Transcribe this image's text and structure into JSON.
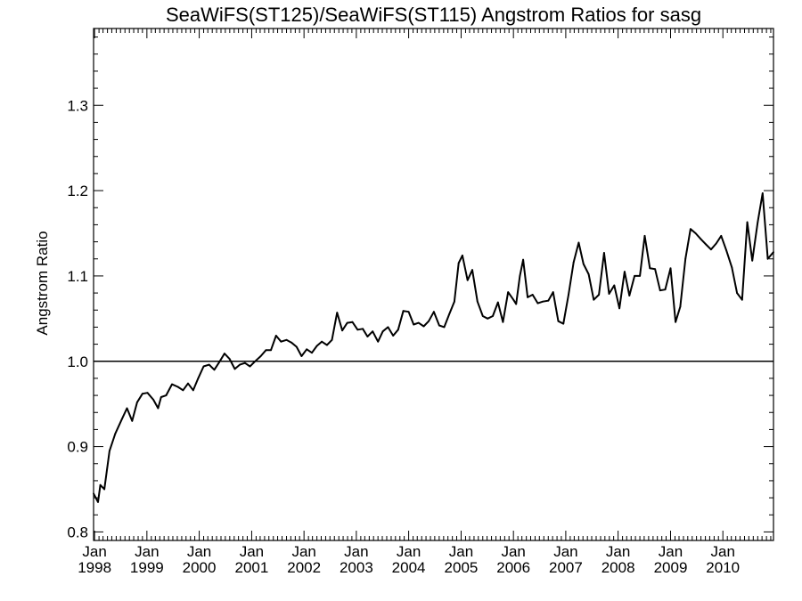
{
  "chart_data": {
    "type": "line",
    "title": "SeaWiFS(ST125)/SeaWiFS(ST115)  Angstrom Ratios for sasg",
    "xlabel": "",
    "ylabel": "Angstrom Ratio",
    "xlim": [
      "1997-12-25",
      "2010-12-20"
    ],
    "ylim": [
      0.79,
      1.39
    ],
    "grid": false,
    "reference_line": {
      "y": 1.0
    },
    "y_ticks": [
      "0.8",
      "0.9",
      "1.0",
      "1.1",
      "1.2",
      "1.3"
    ],
    "x_ticks": [
      {
        "month": "Jan",
        "year": "1998",
        "date": "1998-01-01"
      },
      {
        "month": "Jan",
        "year": "1999",
        "date": "1999-01-01"
      },
      {
        "month": "Jan",
        "year": "2000",
        "date": "2000-01-01"
      },
      {
        "month": "Jan",
        "year": "2001",
        "date": "2001-01-01"
      },
      {
        "month": "Jan",
        "year": "2002",
        "date": "2002-01-01"
      },
      {
        "month": "Jan",
        "year": "2003",
        "date": "2003-01-01"
      },
      {
        "month": "Jan",
        "year": "2004",
        "date": "2004-01-01"
      },
      {
        "month": "Jan",
        "year": "2005",
        "date": "2005-01-01"
      },
      {
        "month": "Jan",
        "year": "2006",
        "date": "2006-01-01"
      },
      {
        "month": "Jan",
        "year": "2007",
        "date": "2007-01-01"
      },
      {
        "month": "Jan",
        "year": "2008",
        "date": "2008-01-01"
      },
      {
        "month": "Jan",
        "year": "2009",
        "date": "2009-01-01"
      },
      {
        "month": "Jan",
        "year": "2010",
        "date": "2010-01-01"
      }
    ],
    "series": [
      {
        "points": [
          [
            "1997-12-25",
            0.845
          ],
          [
            "1998-01-25",
            0.835
          ],
          [
            "1998-02-10",
            0.855
          ],
          [
            "1998-03-10",
            0.85
          ],
          [
            "1998-04-15",
            0.895
          ],
          [
            "1998-05-25",
            0.915
          ],
          [
            "1998-07-10",
            0.932
          ],
          [
            "1998-08-15",
            0.945
          ],
          [
            "1998-09-20",
            0.93
          ],
          [
            "1998-10-25",
            0.952
          ],
          [
            "1998-12-01",
            0.962
          ],
          [
            "1999-01-05",
            0.963
          ],
          [
            "1999-02-15",
            0.955
          ],
          [
            "1999-03-20",
            0.945
          ],
          [
            "1999-04-10",
            0.958
          ],
          [
            "1999-05-15",
            0.96
          ],
          [
            "1999-06-25",
            0.973
          ],
          [
            "1999-08-05",
            0.97
          ],
          [
            "1999-09-10",
            0.966
          ],
          [
            "1999-10-15",
            0.974
          ],
          [
            "1999-11-20",
            0.966
          ],
          [
            "1999-12-25",
            0.98
          ],
          [
            "2000-02-01",
            0.994
          ],
          [
            "2000-03-10",
            0.996
          ],
          [
            "2000-04-15",
            0.99
          ],
          [
            "2000-05-20",
            0.999
          ],
          [
            "2000-06-25",
            1.009
          ],
          [
            "2000-07-30",
            1.003
          ],
          [
            "2000-09-05",
            0.991
          ],
          [
            "2000-10-10",
            0.996
          ],
          [
            "2000-11-15",
            0.998
          ],
          [
            "2000-12-20",
            0.994
          ],
          [
            "2001-01-25",
            1.0
          ],
          [
            "2001-03-05",
            1.006
          ],
          [
            "2001-04-10",
            1.013
          ],
          [
            "2001-05-15",
            1.013
          ],
          [
            "2001-06-20",
            1.03
          ],
          [
            "2001-07-25",
            1.023
          ],
          [
            "2001-09-01",
            1.025
          ],
          [
            "2001-10-05",
            1.022
          ],
          [
            "2001-11-10",
            1.017
          ],
          [
            "2001-12-15",
            1.006
          ],
          [
            "2002-01-20",
            1.014
          ],
          [
            "2002-02-25",
            1.01
          ],
          [
            "2002-04-01",
            1.018
          ],
          [
            "2002-05-05",
            1.023
          ],
          [
            "2002-06-10",
            1.019
          ],
          [
            "2002-07-15",
            1.025
          ],
          [
            "2002-08-20",
            1.057
          ],
          [
            "2002-09-25",
            1.036
          ],
          [
            "2002-10-30",
            1.045
          ],
          [
            "2002-12-05",
            1.046
          ],
          [
            "2003-01-10",
            1.037
          ],
          [
            "2003-02-15",
            1.038
          ],
          [
            "2003-03-20",
            1.029
          ],
          [
            "2003-04-25",
            1.035
          ],
          [
            "2003-06-01",
            1.023
          ],
          [
            "2003-07-05",
            1.035
          ],
          [
            "2003-08-10",
            1.04
          ],
          [
            "2003-09-15",
            1.03
          ],
          [
            "2003-10-20",
            1.037
          ],
          [
            "2003-11-25",
            1.059
          ],
          [
            "2004-01-01",
            1.058
          ],
          [
            "2004-02-05",
            1.043
          ],
          [
            "2004-03-10",
            1.045
          ],
          [
            "2004-04-15",
            1.041
          ],
          [
            "2004-05-20",
            1.047
          ],
          [
            "2004-06-25",
            1.058
          ],
          [
            "2004-08-01",
            1.042
          ],
          [
            "2004-09-05",
            1.04
          ],
          [
            "2004-10-10",
            1.055
          ],
          [
            "2004-11-15",
            1.07
          ],
          [
            "2004-12-15",
            1.115
          ],
          [
            "2005-01-10",
            1.124
          ],
          [
            "2005-02-15",
            1.095
          ],
          [
            "2005-03-20",
            1.107
          ],
          [
            "2005-04-25",
            1.07
          ],
          [
            "2005-06-01",
            1.053
          ],
          [
            "2005-07-05",
            1.05
          ],
          [
            "2005-08-10",
            1.053
          ],
          [
            "2005-09-15",
            1.069
          ],
          [
            "2005-10-20",
            1.046
          ],
          [
            "2005-11-25",
            1.081
          ],
          [
            "2006-01-01",
            1.072
          ],
          [
            "2006-01-20",
            1.067
          ],
          [
            "2006-02-15",
            1.1
          ],
          [
            "2006-03-10",
            1.119
          ],
          [
            "2006-04-10",
            1.075
          ],
          [
            "2006-05-15",
            1.078
          ],
          [
            "2006-06-20",
            1.068
          ],
          [
            "2006-07-25",
            1.07
          ],
          [
            "2006-09-01",
            1.071
          ],
          [
            "2006-10-05",
            1.081
          ],
          [
            "2006-11-10",
            1.047
          ],
          [
            "2006-12-15",
            1.044
          ],
          [
            "2007-01-20",
            1.078
          ],
          [
            "2007-02-25",
            1.116
          ],
          [
            "2007-04-01",
            1.139
          ],
          [
            "2007-05-05",
            1.114
          ],
          [
            "2007-06-10",
            1.102
          ],
          [
            "2007-07-15",
            1.072
          ],
          [
            "2007-08-20",
            1.078
          ],
          [
            "2007-09-25",
            1.127
          ],
          [
            "2007-10-30",
            1.079
          ],
          [
            "2007-12-05",
            1.089
          ],
          [
            "2008-01-10",
            1.062
          ],
          [
            "2008-02-15",
            1.105
          ],
          [
            "2008-03-20",
            1.077
          ],
          [
            "2008-04-25",
            1.1
          ],
          [
            "2008-06-01",
            1.1
          ],
          [
            "2008-07-05",
            1.147
          ],
          [
            "2008-08-10",
            1.109
          ],
          [
            "2008-09-15",
            1.108
          ],
          [
            "2008-10-20",
            1.083
          ],
          [
            "2008-11-25",
            1.084
          ],
          [
            "2009-01-01",
            1.109
          ],
          [
            "2009-02-05",
            1.046
          ],
          [
            "2009-03-10",
            1.064
          ],
          [
            "2009-04-15",
            1.12
          ],
          [
            "2009-05-20",
            1.155
          ],
          [
            "2009-06-25",
            1.15
          ],
          [
            "2009-08-01",
            1.143
          ],
          [
            "2009-09-05",
            1.137
          ],
          [
            "2009-10-10",
            1.131
          ],
          [
            "2009-11-15",
            1.138
          ],
          [
            "2009-12-20",
            1.147
          ],
          [
            "2010-01-25",
            1.13
          ],
          [
            "2010-03-05",
            1.11
          ],
          [
            "2010-04-10",
            1.08
          ],
          [
            "2010-05-15",
            1.072
          ],
          [
            "2010-06-20",
            1.163
          ],
          [
            "2010-07-25",
            1.118
          ],
          [
            "2010-09-01",
            1.163
          ],
          [
            "2010-10-05",
            1.197
          ],
          [
            "2010-11-10",
            1.12
          ],
          [
            "2010-12-20",
            1.128
          ]
        ]
      }
    ]
  }
}
